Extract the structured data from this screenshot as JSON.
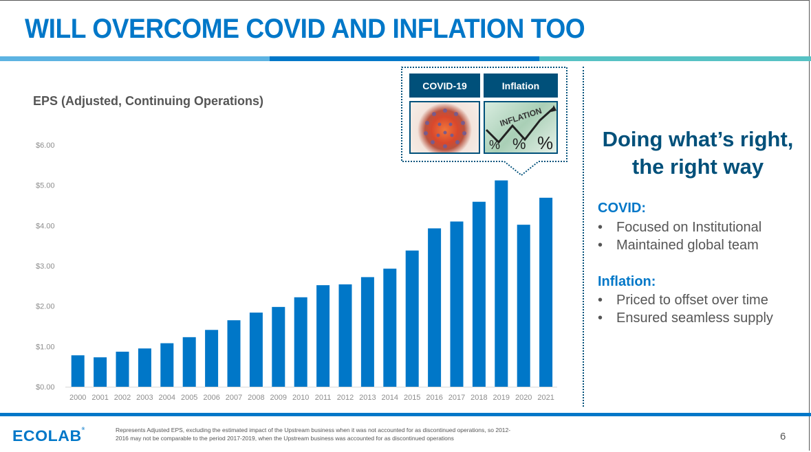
{
  "slide": {
    "title": "WILL OVERCOME COVID AND INFLATION TOO",
    "header_strip_colors": [
      "#5db3e2",
      "#0077c8",
      "#56c2c4"
    ],
    "callout": {
      "tags": [
        "COVID-19",
        "Inflation"
      ],
      "images": [
        "coronavirus-image",
        "inflation-chart-image"
      ],
      "inflation_image_text": "INFLATION",
      "percent_glyph": "%"
    },
    "right_panel": {
      "headline_line1": "Doing what’s right,",
      "headline_line2": "the right way",
      "sections": [
        {
          "heading": "COVID:",
          "bullets": [
            "Focused on Institutional",
            "Maintained global team"
          ]
        },
        {
          "heading": "Inflation:",
          "bullets": [
            "Priced to offset over time",
            "Ensured seamless supply"
          ]
        }
      ],
      "bullet_glyph": "•"
    },
    "footer": {
      "logo": "ECOLAB",
      "logo_mark": "®",
      "footnote_line1": "Represents Adjusted EPS, excluding the estimated impact of the Upstream business when it was not accounted for as discontinued operations, so 2012-",
      "footnote_line2": "2016 may not be comparable to the period 2017-2019, when the Upstream business was accounted for as discontinued operations",
      "page_number": "6"
    },
    "colors": {
      "accent": "#0077c8",
      "navy": "#00507a",
      "text_gray": "#555555",
      "axis_gray": "#8c8c8c"
    }
  },
  "chart_data": {
    "type": "bar",
    "title": "EPS (Adjusted, Continuing Operations)",
    "xlabel": "",
    "ylabel": "",
    "categories": [
      "2000",
      "2001",
      "2002",
      "2003",
      "2004",
      "2005",
      "2006",
      "2007",
      "2008",
      "2009",
      "2010",
      "2011",
      "2012",
      "2013",
      "2014",
      "2015",
      "2016",
      "2017",
      "2018",
      "2019",
      "2020",
      "2021"
    ],
    "values": [
      0.78,
      0.73,
      0.87,
      0.95,
      1.08,
      1.23,
      1.41,
      1.65,
      1.84,
      1.98,
      2.22,
      2.52,
      2.54,
      2.72,
      2.93,
      3.38,
      3.93,
      4.1,
      4.59,
      5.12,
      4.02,
      4.69
    ],
    "ylim": [
      0,
      6
    ],
    "yticks": [
      0,
      1,
      2,
      3,
      4,
      5,
      6
    ],
    "ytick_labels": [
      "$0.00",
      "$1.00",
      "$2.00",
      "$3.00",
      "$4.00",
      "$5.00",
      "$6.00"
    ],
    "grid": false,
    "legend": "none",
    "bar_color": "#0077c8"
  }
}
